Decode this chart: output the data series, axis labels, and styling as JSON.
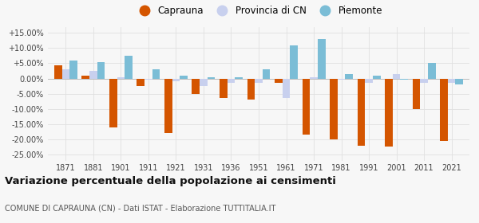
{
  "years": [
    1871,
    1881,
    1901,
    1911,
    1921,
    1931,
    1936,
    1951,
    1961,
    1971,
    1981,
    1991,
    2001,
    2011,
    2021
  ],
  "caprauna": [
    4.3,
    1.0,
    -16.0,
    -2.5,
    -18.0,
    -5.0,
    -6.5,
    -7.0,
    -1.5,
    -18.5,
    -20.0,
    -22.0,
    -22.5,
    -10.0,
    -20.5
  ],
  "provincia_cn": [
    3.0,
    2.5,
    0.5,
    -0.5,
    -0.8,
    -2.5,
    -1.5,
    -1.5,
    -6.5,
    0.5,
    -0.5,
    -1.5,
    1.5,
    -1.5,
    -1.5
  ],
  "piemonte": [
    6.0,
    5.5,
    7.5,
    3.0,
    1.0,
    0.5,
    0.5,
    3.0,
    11.0,
    13.0,
    1.5,
    1.0,
    -0.5,
    5.0,
    -2.0
  ],
  "caprauna_color": "#d45500",
  "provincia_color": "#c8d0ee",
  "piemonte_color": "#7bbdd6",
  "bar_width": 0.28,
  "ylim": [
    -27,
    17
  ],
  "yticks": [
    -25,
    -20,
    -15,
    -10,
    -5,
    0,
    5,
    10,
    15
  ],
  "ytick_labels": [
    "-25.00%",
    "-20.00%",
    "-15.00%",
    "-10.00%",
    "-5.00%",
    "0.00%",
    "+5.00%",
    "+10.00%",
    "+15.00%"
  ],
  "title": "Variazione percentuale della popolazione ai censimenti",
  "subtitle": "COMUNE DI CAPRAUNA (CN) - Dati ISTAT - Elaborazione TUTTITALIA.IT",
  "legend_labels": [
    "Caprauna",
    "Provincia di CN",
    "Piemonte"
  ],
  "bg_color": "#f7f7f7",
  "grid_color": "#e0e0e0"
}
